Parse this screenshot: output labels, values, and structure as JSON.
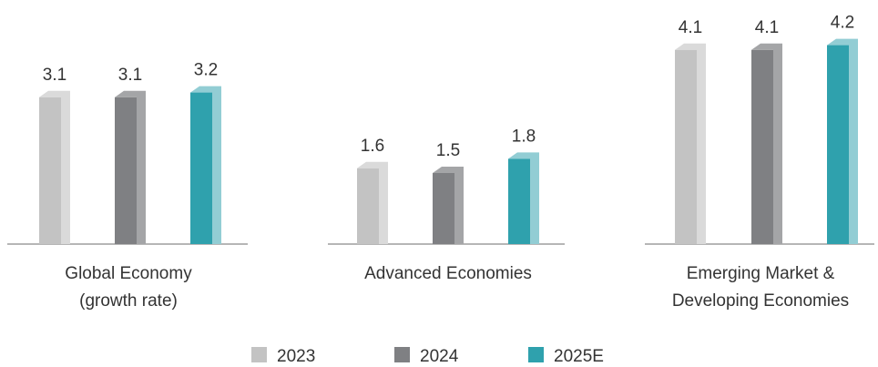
{
  "chart_data": {
    "type": "bar",
    "categories": [
      [
        "Global Economy",
        "(growth rate)"
      ],
      [
        "Advanced Economies"
      ],
      [
        "Emerging Market &",
        "Developing Economies"
      ]
    ],
    "series": [
      {
        "name": "2023",
        "values": [
          3.1,
          1.6,
          4.1
        ],
        "color": "#c3c3c3",
        "side_color": "#dadada"
      },
      {
        "name": "2024",
        "values": [
          3.1,
          1.5,
          4.1
        ],
        "color": "#7f8083",
        "side_color": "#a4a5a7"
      },
      {
        "name": "2025E",
        "values": [
          3.2,
          1.8,
          4.2
        ],
        "color": "#2fa1ad",
        "side_color": "#92cdd4"
      }
    ],
    "value_labels": [
      [
        "3.1",
        "3.1",
        "3.2"
      ],
      [
        "1.6",
        "1.5",
        "1.8"
      ],
      [
        "4.1",
        "4.1",
        "4.2"
      ]
    ],
    "ylim": [
      0,
      4.2
    ],
    "grid": false,
    "legend": "bottom-center",
    "title": "",
    "xlabel": "",
    "ylabel": ""
  }
}
